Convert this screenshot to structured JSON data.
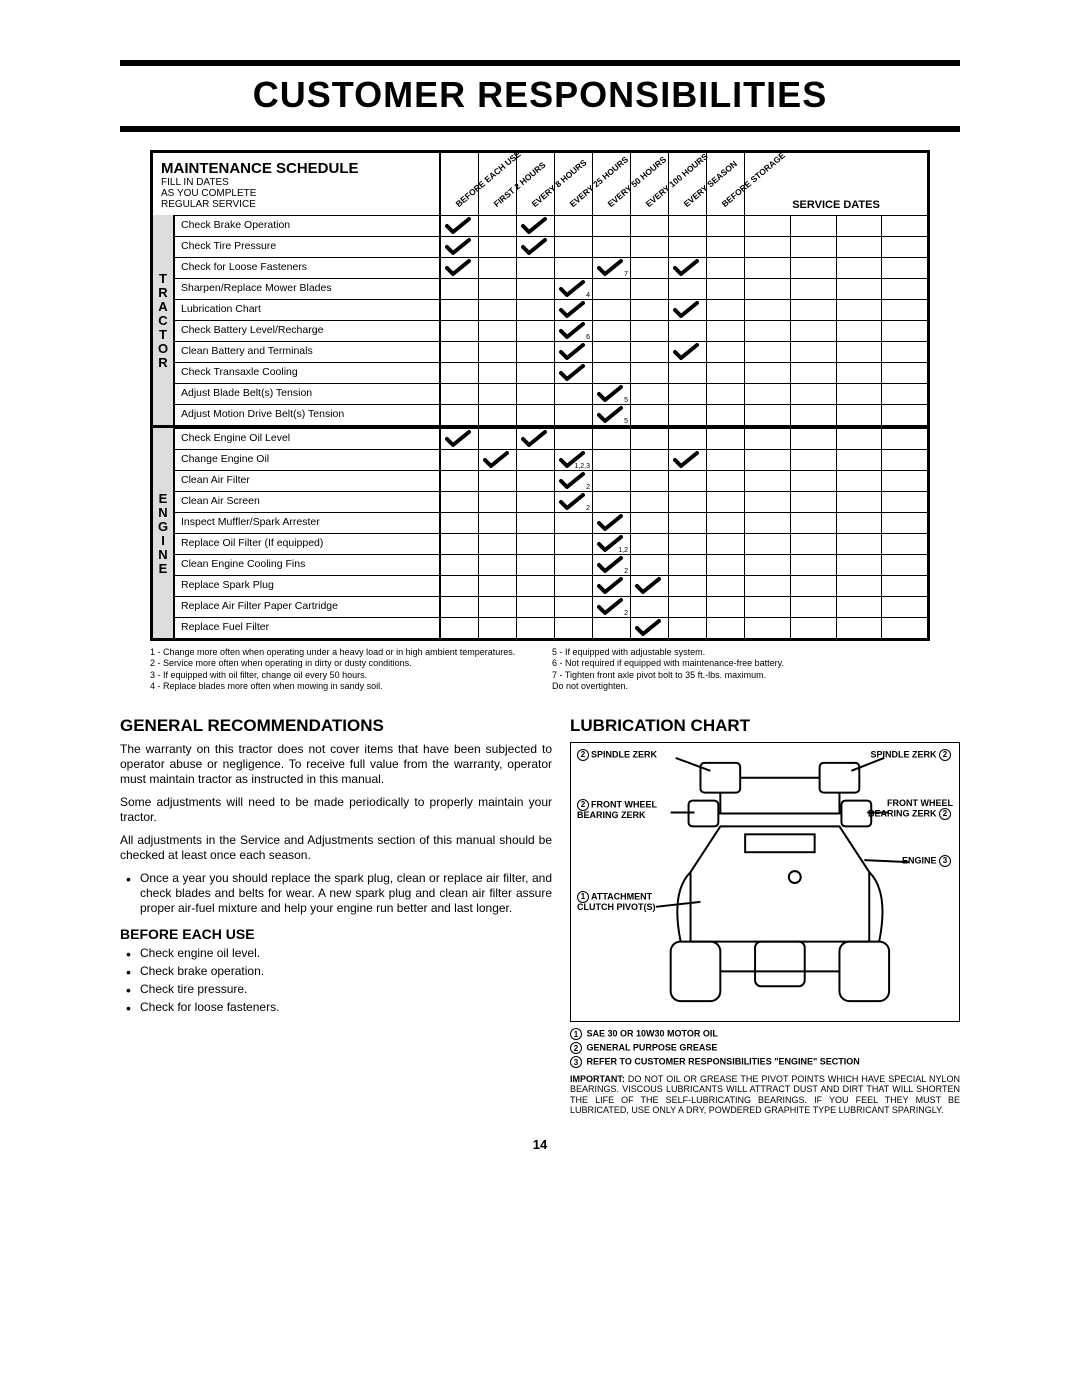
{
  "title": "CUSTOMER RESPONSIBILITIES",
  "schedule": {
    "heading": "MAINTENANCE SCHEDULE",
    "sub1": "FILL IN DATES",
    "sub2": "AS YOU COMPLETE",
    "sub3": "REGULAR SERVICE",
    "columns": [
      "BEFORE EACH USE",
      "FIRST 2 HOURS",
      "EVERY 8 HOURS",
      "EVERY 25 HOURS",
      "EVERY 50 HOURS",
      "EVERY 100 HOURS",
      "EVERY SEASON",
      "BEFORE STORAGE"
    ],
    "service_dates_label": "SERVICE DATES",
    "sections": [
      {
        "category": "TRACTOR",
        "rows": [
          {
            "task": "Check Brake Operation",
            "cols": [
              {
                "c": true
              },
              null,
              {
                "c": true
              },
              null,
              null,
              null,
              null,
              null
            ]
          },
          {
            "task": "Check Tire Pressure",
            "cols": [
              {
                "c": true
              },
              null,
              {
                "c": true
              },
              null,
              null,
              null,
              null,
              null
            ]
          },
          {
            "task": "Check for Loose Fasteners",
            "cols": [
              {
                "c": true
              },
              null,
              null,
              null,
              {
                "c": true,
                "s": "7"
              },
              null,
              {
                "c": true
              },
              null
            ]
          },
          {
            "task": "Sharpen/Replace Mower Blades",
            "cols": [
              null,
              null,
              null,
              {
                "c": true,
                "s": "4"
              },
              null,
              null,
              null,
              null
            ]
          },
          {
            "task": "Lubrication Chart",
            "cols": [
              null,
              null,
              null,
              {
                "c": true
              },
              null,
              null,
              {
                "c": true
              },
              null
            ]
          },
          {
            "task": "Check Battery Level/Recharge",
            "cols": [
              null,
              null,
              null,
              {
                "c": true,
                "s": "6"
              },
              null,
              null,
              null,
              null
            ]
          },
          {
            "task": "Clean Battery and Terminals",
            "cols": [
              null,
              null,
              null,
              {
                "c": true
              },
              null,
              null,
              {
                "c": true
              },
              null
            ]
          },
          {
            "task": "Check Transaxle Cooling",
            "cols": [
              null,
              null,
              null,
              {
                "c": true
              },
              null,
              null,
              null,
              null
            ]
          },
          {
            "task": "Adjust Blade Belt(s) Tension",
            "cols": [
              null,
              null,
              null,
              null,
              {
                "c": true,
                "s": "5"
              },
              null,
              null,
              null
            ]
          },
          {
            "task": "Adjust Motion Drive Belt(s) Tension",
            "cols": [
              null,
              null,
              null,
              null,
              {
                "c": true,
                "s": "5"
              },
              null,
              null,
              null
            ]
          }
        ]
      },
      {
        "category": "ENGINE",
        "rows": [
          {
            "task": "Check Engine Oil Level",
            "cols": [
              {
                "c": true
              },
              null,
              {
                "c": true
              },
              null,
              null,
              null,
              null,
              null
            ]
          },
          {
            "task": "Change Engine Oil",
            "cols": [
              null,
              {
                "c": true
              },
              null,
              {
                "c": true,
                "s": "1,2,3"
              },
              null,
              null,
              {
                "c": true
              },
              null
            ]
          },
          {
            "task": "Clean Air Filter",
            "cols": [
              null,
              null,
              null,
              {
                "c": true,
                "s": "2"
              },
              null,
              null,
              null,
              null
            ]
          },
          {
            "task": "Clean Air Screen",
            "cols": [
              null,
              null,
              null,
              {
                "c": true,
                "s": "2"
              },
              null,
              null,
              null,
              null
            ]
          },
          {
            "task": "Inspect Muffler/Spark Arrester",
            "cols": [
              null,
              null,
              null,
              null,
              {
                "c": true
              },
              null,
              null,
              null
            ]
          },
          {
            "task": "Replace Oil Filter (If equipped)",
            "cols": [
              null,
              null,
              null,
              null,
              {
                "c": true,
                "s": "1,2"
              },
              null,
              null,
              null
            ]
          },
          {
            "task": "Clean Engine Cooling Fins",
            "cols": [
              null,
              null,
              null,
              null,
              {
                "c": true,
                "s": "2"
              },
              null,
              null,
              null
            ]
          },
          {
            "task": "Replace Spark Plug",
            "cols": [
              null,
              null,
              null,
              null,
              {
                "c": true
              },
              {
                "c": true
              },
              null,
              null
            ]
          },
          {
            "task": "Replace Air Filter Paper Cartridge",
            "cols": [
              null,
              null,
              null,
              null,
              {
                "c": true,
                "s": "2"
              },
              null,
              null,
              null
            ]
          },
          {
            "task": "Replace Fuel Filter",
            "cols": [
              null,
              null,
              null,
              null,
              null,
              {
                "c": true
              },
              null,
              null
            ]
          }
        ]
      }
    ]
  },
  "footnotes": {
    "left": [
      "1 - Change more often when operating under a heavy load or in high ambient temperatures.",
      "2 - Service more often when operating in dirty or dusty conditions.",
      "3 - If equipped with oil filter, change oil every 50 hours.",
      "4 - Replace blades more often when mowing in sandy soil."
    ],
    "right": [
      "5 - If equipped with adjustable system.",
      "6 - Not required if equipped with maintenance-free battery.",
      "7 - Tighten front axle pivot bolt to 35 ft.-lbs. maximum.",
      "    Do not overtighten."
    ]
  },
  "general": {
    "heading": "GENERAL RECOMMENDATIONS",
    "p1": "The warranty on this tractor does not cover items that have been subjected to operator abuse or negligence. To receive full value from the warranty, operator must maintain tractor as instructed in this manual.",
    "p2": "Some adjustments will need to be made periodically to properly maintain your tractor.",
    "p3": "All adjustments in the Service and Adjustments section of this manual should be checked at least once each season.",
    "bullet": "Once a year you should replace the spark plug, clean or replace air filter, and check blades and belts for wear. A new spark plug and clean air filter assure proper air-fuel mixture and help your engine run better and last longer."
  },
  "before": {
    "heading": "BEFORE EACH USE",
    "items": [
      "Check engine oil level.",
      "Check brake operation.",
      "Check tire pressure.",
      "Check for loose fasteners."
    ]
  },
  "lube": {
    "heading": "LUBRICATION CHART",
    "labels": {
      "spindle_l": "SPINDLE ZERK",
      "spindle_r": "SPINDLE ZERK",
      "front_l": "FRONT WHEEL BEARING ZERK",
      "front_r": "FRONT WHEEL BEARING ZERK",
      "engine": "ENGINE",
      "clutch": "ATTACHMENT CLUTCH PIVOT(S)"
    },
    "legend": [
      {
        "n": "1",
        "t": "SAE 30 OR 10W30 MOTOR OIL"
      },
      {
        "n": "2",
        "t": "GENERAL PURPOSE GREASE"
      },
      {
        "n": "3",
        "t": "REFER TO CUSTOMER RESPONSIBILITIES \"ENGINE\" SECTION"
      }
    ],
    "important": "IMPORTANT: DO NOT OIL OR GREASE THE PIVOT POINTS WHICH HAVE SPECIAL NYLON BEARINGS. VISCOUS LUBRICANTS WILL ATTRACT DUST AND DIRT THAT WILL SHORTEN THE LIFE OF THE SELF-LUBRICATING BEARINGS. IF YOU FEEL THEY MUST BE LUBRICATED, USE ONLY A DRY, POWDERED GRAPHITE TYPE LUBRICANT SPARINGLY."
  },
  "page_num": "14"
}
